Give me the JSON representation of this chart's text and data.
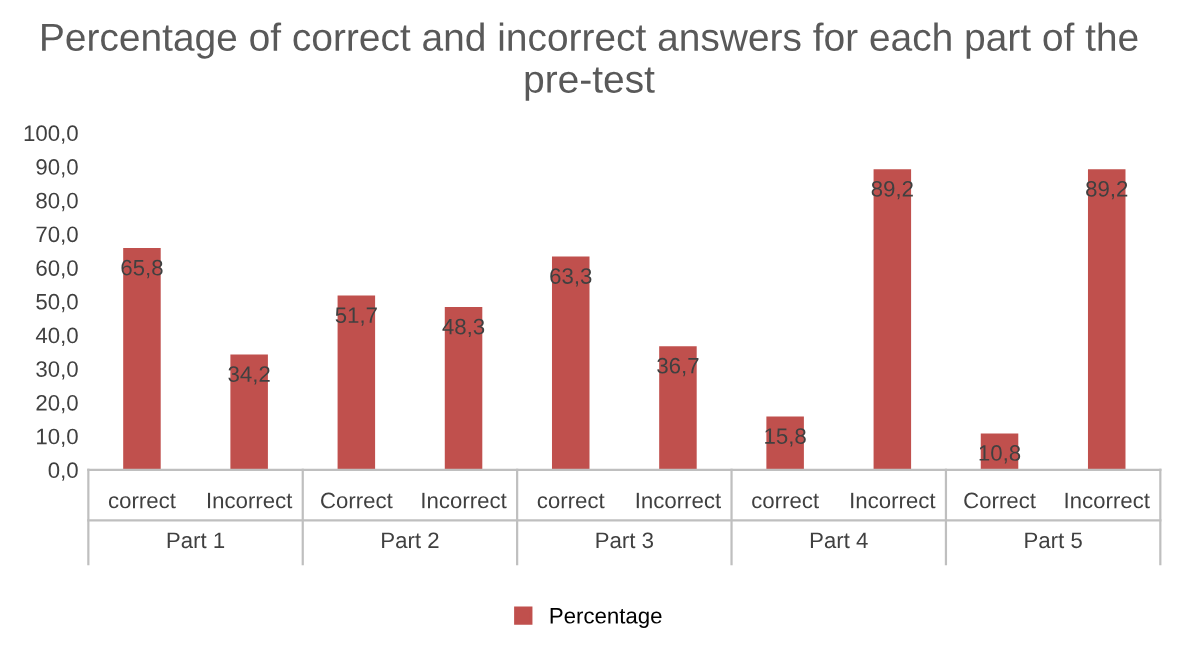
{
  "chart_data": {
    "type": "bar",
    "title": "Percentage of correct and incorrect answers for each part of the pre-test",
    "categories": [
      "correct",
      "Incorrect",
      "Correct",
      "Incorrect",
      "correct",
      "Incorrect",
      "correct",
      "Incorrect",
      "Correct",
      "Incorrect"
    ],
    "annotations": [
      "Part 1",
      "Part 2",
      "Part 3",
      "Part 4",
      "Part 5"
    ],
    "series": [
      {
        "name": "Percentage",
        "color": "#c0504d",
        "values": [
          65.8,
          34.2,
          51.7,
          48.3,
          63.3,
          36.7,
          15.8,
          89.2,
          10.8,
          89.2
        ],
        "value_labels": [
          "65,8",
          "34,2",
          "51,7",
          "48,3",
          "63,3",
          "36,7",
          "15,8",
          "89,2",
          "10,8",
          "89,2"
        ]
      }
    ],
    "ylim": [
      0,
      100
    ],
    "yticks": [
      {
        "value": 0,
        "label": "0,0"
      },
      {
        "value": 10,
        "label": "10,0"
      },
      {
        "value": 20,
        "label": "20,0"
      },
      {
        "value": 30,
        "label": "30,0"
      },
      {
        "value": 40,
        "label": "40,0"
      },
      {
        "value": 50,
        "label": "50,0"
      },
      {
        "value": 60,
        "label": "60,0"
      },
      {
        "value": 70,
        "label": "70,0"
      },
      {
        "value": 80,
        "label": "80,0"
      },
      {
        "value": 90,
        "label": "90,0"
      },
      {
        "value": 100,
        "label": "100,0"
      }
    ],
    "grid": false,
    "legend": "bottom"
  }
}
